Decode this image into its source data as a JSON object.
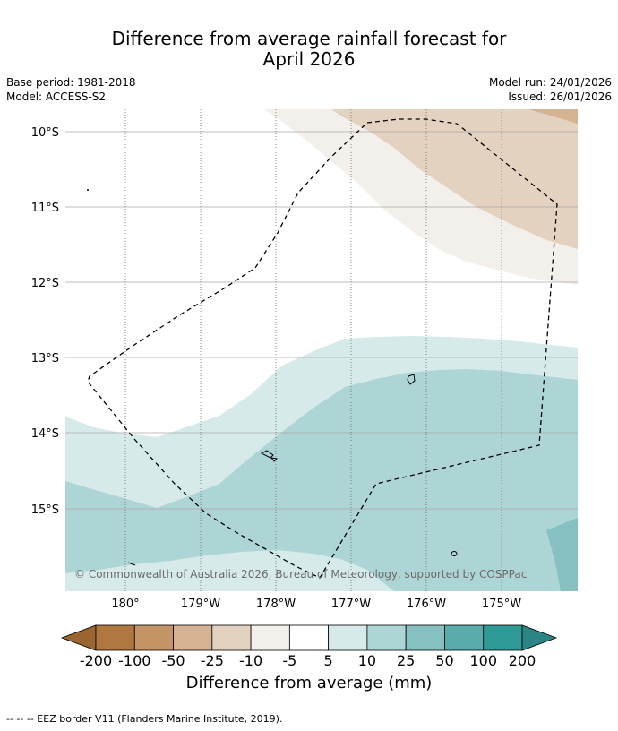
{
  "title": {
    "line1": "Difference from average rainfall forecast for",
    "line2": "April 2026"
  },
  "meta": {
    "base_period": "Base period: 1981-2018",
    "model": "Model: ACCESS-S2",
    "model_run": "Model run: 24/01/2026",
    "issued": "Issued: 26/01/2026"
  },
  "map": {
    "lat_labels": [
      "10°S",
      "11°S",
      "12°S",
      "13°S",
      "14°S",
      "15°S"
    ],
    "lon_labels": [
      "180°",
      "179°W",
      "178°W",
      "177°W",
      "176°W",
      "175°W"
    ],
    "copyright": "© Commonwealth of Australia 2026, Bureau of Meteorology, supported by COSPPac"
  },
  "colorbar": {
    "ticks": [
      "-200",
      "-100",
      "-50",
      "-25",
      "-10",
      "-5",
      "5",
      "10",
      "25",
      "50",
      "100",
      "200"
    ],
    "colors": [
      "#b07840",
      "#c29466",
      "#d4b292",
      "#e4d2c0",
      "#f3efea",
      "#ffffff",
      "#d6eaea",
      "#aed5d5",
      "#86c0c0",
      "#5aabab",
      "#2f9a96"
    ],
    "under_color": "#9a6530",
    "over_color": "#2a8584",
    "title": "Difference from average (mm)"
  },
  "footer": {
    "eez_note": "--  --  -- EEZ border V11 (Flanders Marine Institute, 2019)."
  }
}
